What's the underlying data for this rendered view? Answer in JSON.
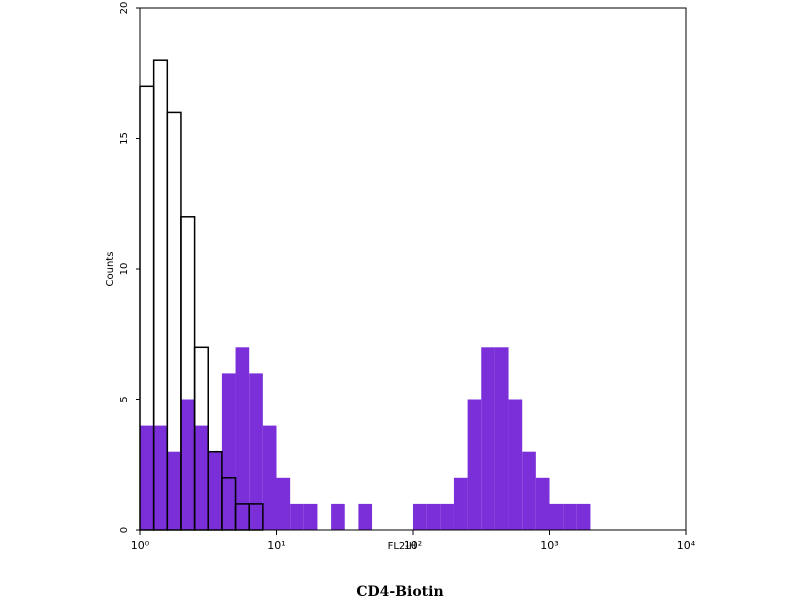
{
  "chart_data": {
    "type": "histogram",
    "title": "CD4-Biotin",
    "x_label": "FL2-H",
    "y_label": "Counts",
    "log_x": true,
    "xlim": [
      1,
      10000
    ],
    "xticks": [
      {
        "value": 1,
        "label": "10⁰"
      },
      {
        "value": 10,
        "label": "10¹"
      },
      {
        "value": 100,
        "label": "10²"
      },
      {
        "value": 1000,
        "label": "10³"
      },
      {
        "value": 10000,
        "label": "10⁴"
      }
    ],
    "ylim": [
      0,
      20
    ],
    "yticks": [
      0,
      5,
      10,
      15,
      20
    ],
    "bins": [
      1,
      1.259,
      1.585,
      1.995,
      2.512,
      3.162,
      3.981,
      5.012,
      6.31,
      7.943,
      10,
      12.59,
      15.85,
      19.95,
      25.12,
      31.62,
      39.81,
      50.12,
      63.1,
      79.43,
      100,
      125.9,
      158.5,
      199.5,
      251.2,
      316.2,
      398.1,
      501.2,
      631,
      794.3,
      1000,
      1259,
      1585,
      1995,
      2512,
      3162,
      3981,
      5012,
      6310,
      7943,
      10000
    ],
    "series": [
      {
        "color": "#7a2fd8",
        "filled": true,
        "values": [
          4,
          4,
          3,
          5,
          4,
          3,
          6,
          7,
          6,
          4,
          2,
          1,
          1,
          0,
          1,
          0,
          1,
          0,
          0,
          0,
          1,
          1,
          1,
          2,
          5,
          7,
          7,
          5,
          3,
          2,
          1,
          1,
          1,
          0,
          0,
          0,
          0,
          0,
          0,
          0
        ]
      },
      {
        "color": "#000000",
        "filled": false,
        "values": [
          17,
          18,
          16,
          12,
          7,
          3,
          2,
          1,
          1,
          0,
          0,
          0,
          0,
          0,
          0,
          0,
          0,
          0,
          0,
          0,
          0,
          0,
          0,
          0,
          0,
          0,
          0,
          0,
          0,
          0,
          0,
          0,
          0,
          0,
          0,
          0,
          0,
          0,
          0,
          0
        ]
      }
    ]
  }
}
